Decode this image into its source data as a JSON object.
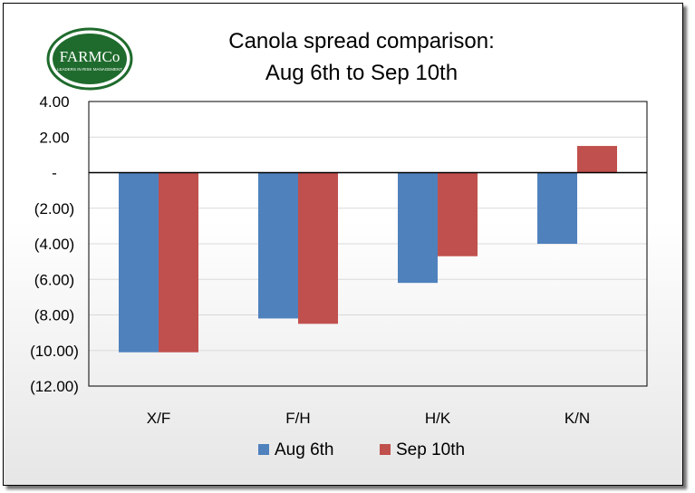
{
  "logo": {
    "text": "FARMCo",
    "tagline": "LEADERS IN RISK MANAGEMENT"
  },
  "colors": {
    "aug": "#4f81bd",
    "sep": "#c0504d",
    "logo_green": "#1f6b2d",
    "grid": "#d9d9d9"
  },
  "chart_data": {
    "type": "bar",
    "title": [
      "Canola spread comparison:",
      "Aug 6th to Sep 10th"
    ],
    "categories": [
      "X/F",
      "F/H",
      "H/K",
      "K/N"
    ],
    "series": [
      {
        "name": "Aug 6th",
        "values": [
          -10.1,
          -8.2,
          -6.2,
          -4.0
        ]
      },
      {
        "name": "Sep 10th",
        "values": [
          -10.1,
          -8.5,
          -4.7,
          1.5
        ]
      }
    ],
    "ylim": [
      -12,
      4
    ],
    "yticks": [
      4,
      2,
      0,
      -2,
      -4,
      -6,
      -8,
      -10,
      -12
    ],
    "ytick_labels": [
      "4.00",
      "2.00",
      "-",
      "(2.00)",
      "(4.00)",
      "(6.00)",
      "(8.00)",
      "(10.00)",
      "(12.00)"
    ],
    "grid": true,
    "legend": "bottom"
  }
}
